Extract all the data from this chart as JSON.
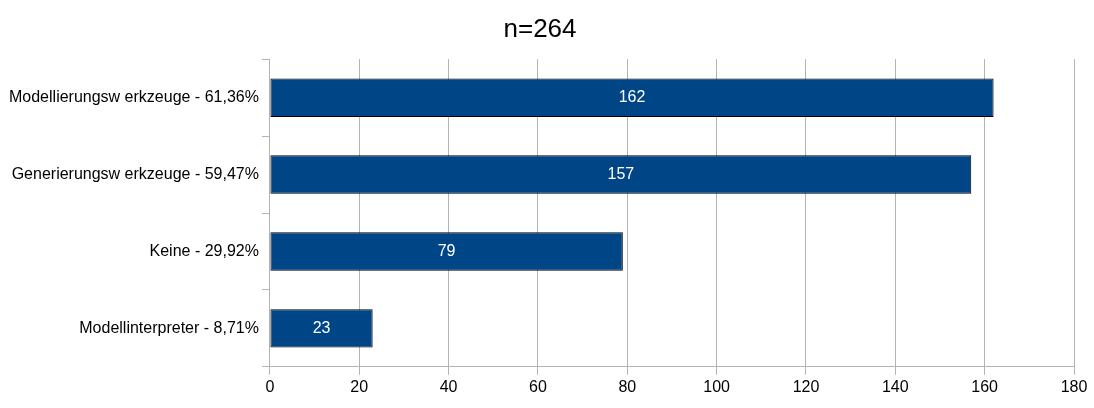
{
  "chart_data": {
    "type": "bar",
    "orientation": "horizontal",
    "title": "n=264",
    "categories": [
      "Modellierungsw erkzeuge - 61,36%",
      "Generierungsw erkzeuge - 59,47%",
      "Keine - 29,92%",
      "Modellinterpreter - 8,71%"
    ],
    "values": [
      162,
      157,
      79,
      23
    ],
    "color": "#004586",
    "xlim": [
      0,
      180
    ],
    "xticks": [
      0,
      20,
      40,
      60,
      80,
      100,
      120,
      140,
      160,
      180
    ],
    "grid": "x",
    "legend": false,
    "data_labels": true
  }
}
